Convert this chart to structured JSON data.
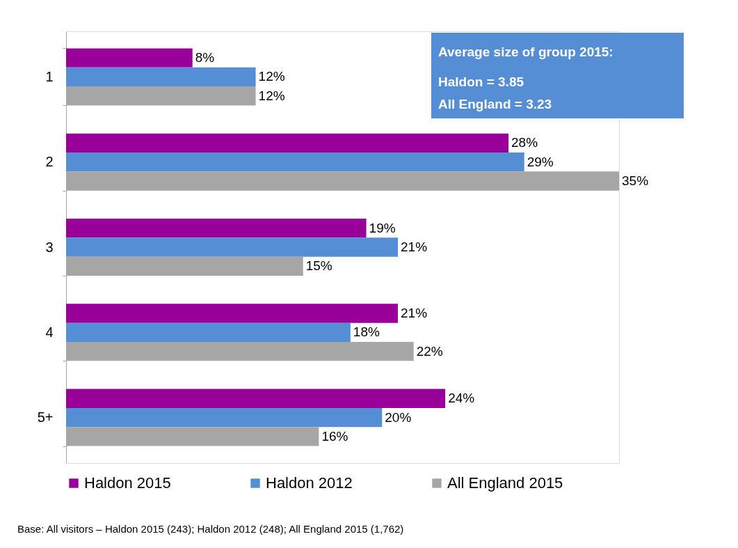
{
  "chart_data": {
    "type": "bar",
    "orientation": "horizontal",
    "categories": [
      "1",
      "2",
      "3",
      "4",
      "5+"
    ],
    "series": [
      {
        "name": "Haldon 2015",
        "color": "#990099",
        "values": [
          8,
          28,
          19,
          21,
          24
        ],
        "value_labels": [
          "8%",
          "28%",
          "19%",
          "21%",
          "24%"
        ]
      },
      {
        "name": "Haldon 2012",
        "color": "#558ed5",
        "values": [
          12,
          29,
          21,
          18,
          20
        ],
        "value_labels": [
          "12%",
          "29%",
          "21%",
          "18%",
          "20%"
        ]
      },
      {
        "name": "All England 2015",
        "color": "#a6a6a6",
        "values": [
          12,
          35,
          15,
          22,
          16
        ],
        "value_labels": [
          "12%",
          "35%",
          "15%",
          "22%",
          "16%"
        ]
      }
    ],
    "legend": "bottom",
    "grid": false,
    "tick_labels": "y",
    "annotations": [
      "Average size of group 2015:",
      "Haldon = 3.85",
      "All England = 3.23",
      "Base: All visitors – Haldon 2015 (243); Haldon 2012 (248); All England 2015 (1,762)"
    ]
  }
}
